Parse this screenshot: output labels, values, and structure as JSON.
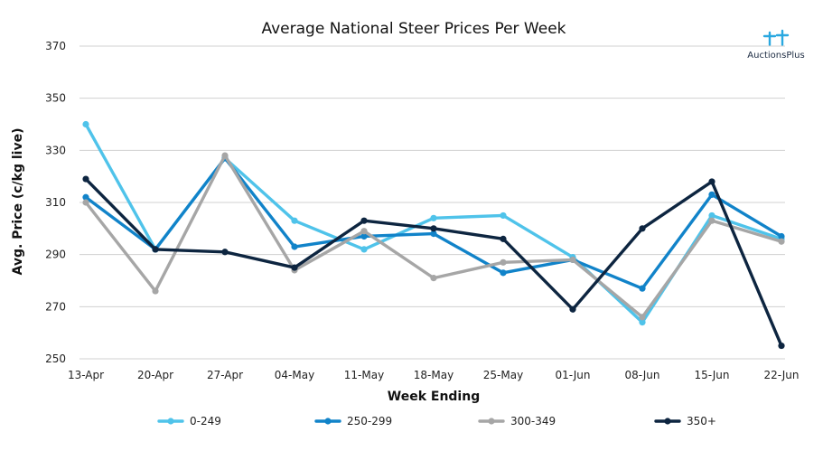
{
  "logo": {
    "text": "AuctionsPlus"
  },
  "chart_data": {
    "type": "line",
    "title": "Average National Steer Prices Per Week",
    "xlabel": "Week Ending",
    "ylabel": "Avg. Price (c/kg live)",
    "ylim": [
      250,
      370
    ],
    "yticks": [
      250,
      270,
      290,
      310,
      330,
      350,
      370
    ],
    "grid": true,
    "legend_position": "bottom",
    "categories": [
      "13-Apr",
      "20-Apr",
      "27-Apr",
      "04-May",
      "11-May",
      "18-May",
      "25-May",
      "01-Jun",
      "08-Jun",
      "15-Jun",
      "22-Jun"
    ],
    "series": [
      {
        "name": "0-249",
        "color": "#4fc3ea",
        "values": [
          340,
          292,
          327,
          303,
          292,
          304,
          305,
          289,
          264,
          305,
          296
        ]
      },
      {
        "name": "250-299",
        "color": "#1183c9",
        "values": [
          312,
          292,
          327,
          293,
          297,
          298,
          283,
          288,
          277,
          313,
          297
        ]
      },
      {
        "name": "300-349",
        "color": "#a6a6a6",
        "values": [
          310,
          276,
          328,
          284,
          299,
          281,
          287,
          288,
          266,
          303,
          295
        ]
      },
      {
        "name": "350+",
        "color": "#0d2540",
        "values": [
          319,
          292,
          291,
          285,
          303,
          300,
          296,
          269,
          300,
          318,
          255
        ]
      }
    ]
  }
}
